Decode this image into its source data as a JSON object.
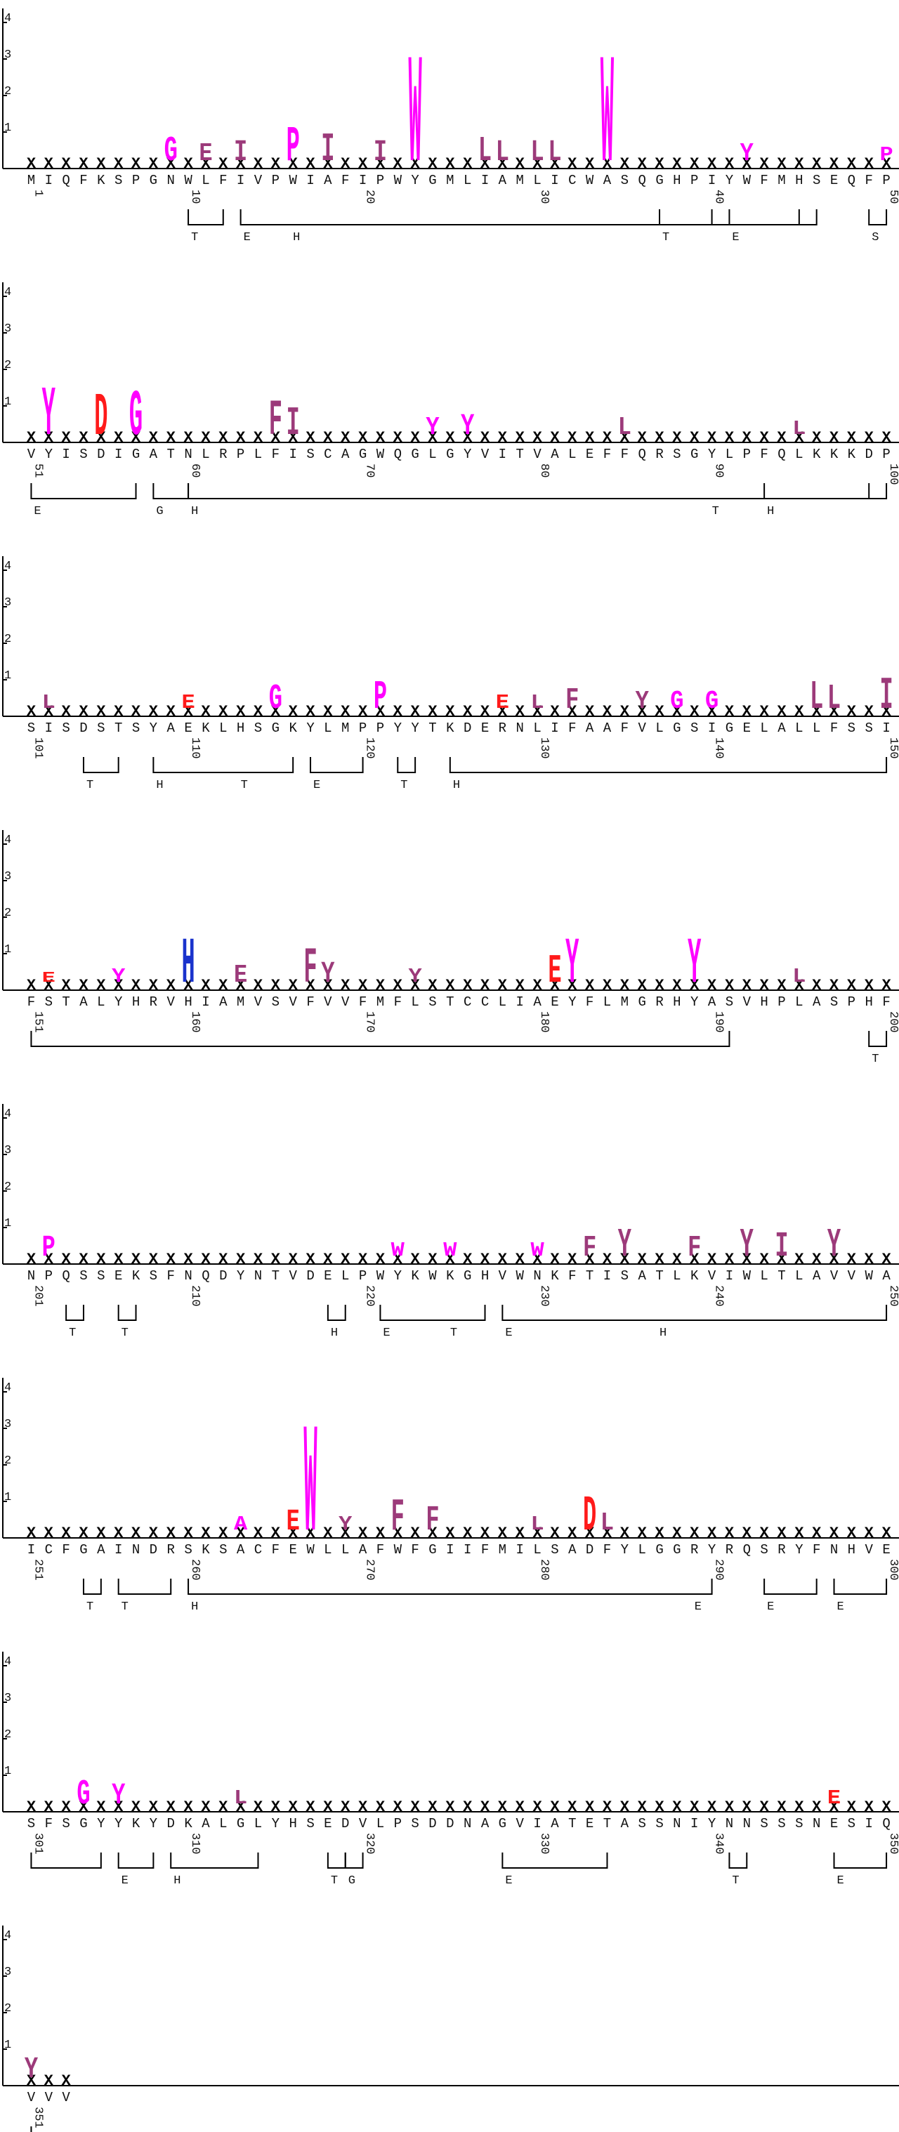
{
  "y_ticks": [
    "4",
    "3",
    "2",
    "1"
  ],
  "colors": {
    "hydrophobic": "#9c3a7a",
    "aromatic": "#ff00ff",
    "acidic": "#ff1a1a",
    "basic": "#1a33cc",
    "polar": "#22a022",
    "special": "#ff00ff",
    "x": "#000000"
  },
  "rows": [
    {
      "start": 1,
      "seq": "MIQFKSPGNWLFIVPWIAFIPWYGMLIAMLICWASQGHPIYWFMHSEQFP",
      "numbers": [
        "1",
        "10",
        "20",
        "30",
        "40",
        "50"
      ]
    },
    {
      "start": 51,
      "seq": "VYISDIGATNLRPLFISCAGWQGLGYVITVALEFFQRSGYLPFQLKKKDP",
      "numbers": [
        "51",
        "60",
        "70",
        "80",
        "90",
        "100"
      ]
    },
    {
      "start": 101,
      "seq": "SISDSTSYAEKLHSGKYLMPPYYTKDERNLIFAAFVLGSIGELALLFSSI",
      "numbers": [
        "101",
        "110",
        "120",
        "130",
        "140",
        "150"
      ]
    },
    {
      "start": 151,
      "seq": "FSTALYHRVHIAMVSVFVVFMFLSTCCLIAEYFLMGRHYASVHPLASPHF",
      "numbers": [
        "151",
        "160",
        "170",
        "180",
        "190",
        "200"
      ]
    },
    {
      "start": 201,
      "seq": "NPQSSEKSFNQDYNTVDELPWYKWKGHVWNKFTISATLKVIWLTLAVVWA",
      "numbers": [
        "201",
        "210",
        "220",
        "230",
        "240",
        "250"
      ]
    },
    {
      "start": 251,
      "seq": "ICFGAINDRSKSACFEWLLAFWFGIIFMILSADFYLGGRYRQSRYFNHVE",
      "numbers": [
        "251",
        "260",
        "270",
        "280",
        "290",
        "300"
      ]
    },
    {
      "start": 301,
      "seq": "SFSGYYKYDKALGLYHSEDVLPSDDNAGVIATETASSNIYNNSSSNESIQ",
      "numbers": [
        "301",
        "310",
        "320",
        "330",
        "340",
        "350"
      ]
    },
    {
      "start": 351,
      "seq": "VVV",
      "numbers": [
        "351"
      ]
    }
  ],
  "logo_letters": [
    {
      "row": 0,
      "pos": 8,
      "letter": "G",
      "bits": 0.7,
      "cls": "aromatic"
    },
    {
      "row": 0,
      "pos": 10,
      "letter": "E",
      "bits": 0.5,
      "cls": "hydrophobic"
    },
    {
      "row": 0,
      "pos": 12,
      "letter": "I",
      "bits": 0.6,
      "cls": "hydrophobic"
    },
    {
      "row": 0,
      "pos": 15,
      "letter": "P",
      "bits": 1.0,
      "cls": "aromatic"
    },
    {
      "row": 0,
      "pos": 17,
      "letter": "I",
      "bits": 0.8,
      "cls": "hydrophobic"
    },
    {
      "row": 0,
      "pos": 20,
      "letter": "I",
      "bits": 0.6,
      "cls": "hydrophobic"
    },
    {
      "row": 0,
      "pos": 22,
      "letter": "W",
      "bits": 3.1,
      "cls": "aromatic"
    },
    {
      "row": 0,
      "pos": 26,
      "letter": "L",
      "bits": 0.7,
      "cls": "hydrophobic"
    },
    {
      "row": 0,
      "pos": 27,
      "letter": "L",
      "bits": 0.6,
      "cls": "hydrophobic"
    },
    {
      "row": 0,
      "pos": 29,
      "letter": "L",
      "bits": 0.6,
      "cls": "hydrophobic"
    },
    {
      "row": 0,
      "pos": 30,
      "letter": "L",
      "bits": 0.6,
      "cls": "hydrophobic"
    },
    {
      "row": 0,
      "pos": 33,
      "letter": "W",
      "bits": 3.1,
      "cls": "aromatic"
    },
    {
      "row": 0,
      "pos": 41,
      "letter": "Y",
      "bits": 0.5,
      "cls": "aromatic"
    },
    {
      "row": 0,
      "pos": 49,
      "letter": "P",
      "bits": 0.4,
      "cls": "aromatic"
    },
    {
      "row": 1,
      "pos": 1,
      "letter": "Y",
      "bits": 1.4,
      "cls": "aromatic"
    },
    {
      "row": 1,
      "pos": 4,
      "letter": "D",
      "bits": 1.2,
      "cls": "acidic"
    },
    {
      "row": 1,
      "pos": 6,
      "letter": "G",
      "bits": 1.3,
      "cls": "aromatic"
    },
    {
      "row": 1,
      "pos": 14,
      "letter": "F",
      "bits": 1.0,
      "cls": "hydrophobic"
    },
    {
      "row": 1,
      "pos": 15,
      "letter": "I",
      "bits": 0.8,
      "cls": "hydrophobic"
    },
    {
      "row": 1,
      "pos": 23,
      "letter": "Y",
      "bits": 0.5,
      "cls": "aromatic"
    },
    {
      "row": 1,
      "pos": 25,
      "letter": "Y",
      "bits": 0.6,
      "cls": "aromatic"
    },
    {
      "row": 1,
      "pos": 34,
      "letter": "L",
      "bits": 0.5,
      "cls": "hydrophobic"
    },
    {
      "row": 1,
      "pos": 44,
      "letter": "L",
      "bits": 0.4,
      "cls": "hydrophobic"
    },
    {
      "row": 2,
      "pos": 1,
      "letter": "L",
      "bits": 0.4,
      "cls": "hydrophobic"
    },
    {
      "row": 2,
      "pos": 9,
      "letter": "E",
      "bits": 0.4,
      "cls": "acidic"
    },
    {
      "row": 2,
      "pos": 14,
      "letter": "G",
      "bits": 0.7,
      "cls": "aromatic"
    },
    {
      "row": 2,
      "pos": 20,
      "letter": "P",
      "bits": 0.8,
      "cls": "aromatic"
    },
    {
      "row": 2,
      "pos": 27,
      "letter": "E",
      "bits": 0.4,
      "cls": "acidic"
    },
    {
      "row": 2,
      "pos": 29,
      "letter": "L",
      "bits": 0.4,
      "cls": "hydrophobic"
    },
    {
      "row": 2,
      "pos": 31,
      "letter": "F",
      "bits": 0.6,
      "cls": "hydrophobic"
    },
    {
      "row": 2,
      "pos": 35,
      "letter": "Y",
      "bits": 0.5,
      "cls": "hydrophobic"
    },
    {
      "row": 2,
      "pos": 37,
      "letter": "G",
      "bits": 0.5,
      "cls": "aromatic"
    },
    {
      "row": 2,
      "pos": 39,
      "letter": "G",
      "bits": 0.5,
      "cls": "aromatic"
    },
    {
      "row": 2,
      "pos": 45,
      "letter": "L",
      "bits": 0.8,
      "cls": "hydrophobic"
    },
    {
      "row": 2,
      "pos": 46,
      "letter": "L",
      "bits": 0.7,
      "cls": "hydrophobic"
    },
    {
      "row": 2,
      "pos": 49,
      "letter": "I",
      "bits": 0.9,
      "cls": "hydrophobic"
    },
    {
      "row": 3,
      "pos": 1,
      "letter": "E",
      "bits": 0.3,
      "cls": "acidic"
    },
    {
      "row": 3,
      "pos": 5,
      "letter": "Y",
      "bits": 0.4,
      "cls": "aromatic"
    },
    {
      "row": 3,
      "pos": 9,
      "letter": "H",
      "bits": 1.3,
      "cls": "basic"
    },
    {
      "row": 3,
      "pos": 12,
      "letter": "E",
      "bits": 0.5,
      "cls": "hydrophobic"
    },
    {
      "row": 3,
      "pos": 16,
      "letter": "F",
      "bits": 1.0,
      "cls": "hydrophobic"
    },
    {
      "row": 3,
      "pos": 17,
      "letter": "Y",
      "bits": 0.6,
      "cls": "hydrophobic"
    },
    {
      "row": 3,
      "pos": 22,
      "letter": "Y",
      "bits": 0.4,
      "cls": "hydrophobic"
    },
    {
      "row": 3,
      "pos": 30,
      "letter": "E",
      "bits": 0.8,
      "cls": "acidic"
    },
    {
      "row": 3,
      "pos": 31,
      "letter": "Y",
      "bits": 1.3,
      "cls": "aromatic"
    },
    {
      "row": 3,
      "pos": 38,
      "letter": "Y",
      "bits": 1.3,
      "cls": "aromatic"
    },
    {
      "row": 3,
      "pos": 44,
      "letter": "L",
      "bits": 0.4,
      "cls": "hydrophobic"
    },
    {
      "row": 4,
      "pos": 1,
      "letter": "P",
      "bits": 0.6,
      "cls": "aromatic"
    },
    {
      "row": 4,
      "pos": 21,
      "letter": "W",
      "bits": 0.4,
      "cls": "aromatic"
    },
    {
      "row": 4,
      "pos": 24,
      "letter": "W",
      "bits": 0.4,
      "cls": "aromatic"
    },
    {
      "row": 4,
      "pos": 29,
      "letter": "W",
      "bits": 0.4,
      "cls": "aromatic"
    },
    {
      "row": 4,
      "pos": 32,
      "letter": "F",
      "bits": 0.6,
      "cls": "hydrophobic"
    },
    {
      "row": 4,
      "pos": 34,
      "letter": "Y",
      "bits": 0.8,
      "cls": "hydrophobic"
    },
    {
      "row": 4,
      "pos": 38,
      "letter": "F",
      "bits": 0.6,
      "cls": "hydrophobic"
    },
    {
      "row": 4,
      "pos": 41,
      "letter": "Y",
      "bits": 0.8,
      "cls": "hydrophobic"
    },
    {
      "row": 4,
      "pos": 43,
      "letter": "I",
      "bits": 0.7,
      "cls": "hydrophobic"
    },
    {
      "row": 4,
      "pos": 46,
      "letter": "Y",
      "bits": 0.8,
      "cls": "hydrophobic"
    },
    {
      "row": 5,
      "pos": 12,
      "letter": "A",
      "bits": 0.4,
      "cls": "aromatic"
    },
    {
      "row": 5,
      "pos": 15,
      "letter": "E",
      "bits": 0.6,
      "cls": "acidic"
    },
    {
      "row": 5,
      "pos": 16,
      "letter": "W",
      "bits": 3.1,
      "cls": "aromatic"
    },
    {
      "row": 5,
      "pos": 18,
      "letter": "Y",
      "bits": 0.4,
      "cls": "hydrophobic"
    },
    {
      "row": 5,
      "pos": 21,
      "letter": "F",
      "bits": 0.9,
      "cls": "hydrophobic"
    },
    {
      "row": 5,
      "pos": 23,
      "letter": "F",
      "bits": 0.7,
      "cls": "hydrophobic"
    },
    {
      "row": 5,
      "pos": 29,
      "letter": "L",
      "bits": 0.4,
      "cls": "hydrophobic"
    },
    {
      "row": 5,
      "pos": 32,
      "letter": "D",
      "bits": 1.0,
      "cls": "acidic"
    },
    {
      "row": 5,
      "pos": 33,
      "letter": "L",
      "bits": 0.5,
      "cls": "hydrophobic"
    },
    {
      "row": 6,
      "pos": 3,
      "letter": "G",
      "bits": 0.7,
      "cls": "aromatic"
    },
    {
      "row": 6,
      "pos": 5,
      "letter": "Y",
      "bits": 0.6,
      "cls": "aromatic"
    },
    {
      "row": 6,
      "pos": 12,
      "letter": "L",
      "bits": 0.4,
      "cls": "hydrophobic"
    },
    {
      "row": 6,
      "pos": 46,
      "letter": "E",
      "bits": 0.4,
      "cls": "acidic"
    },
    {
      "row": 7,
      "pos": 0,
      "letter": "Y",
      "bits": 0.6,
      "cls": "hydrophobic"
    }
  ],
  "ss_segments": [
    {
      "row": 0,
      "a": 9,
      "b": 11,
      "label": "T"
    },
    {
      "row": 0,
      "a": 12,
      "b": 44,
      "label": "E",
      "label2": "H",
      "l2pos": 15
    },
    {
      "row": 0,
      "a": 36,
      "b": 39,
      "label": "T"
    },
    {
      "row": 0,
      "a": 40,
      "b": 45,
      "label": "E"
    },
    {
      "row": 0,
      "a": 48,
      "b": 49,
      "label": "S"
    },
    {
      "row": 1,
      "a": 0,
      "b": 6,
      "label": "E"
    },
    {
      "row": 1,
      "a": 7,
      "b": 9,
      "label": "G"
    },
    {
      "row": 1,
      "a": 9,
      "b": 49,
      "label": "H",
      "label2": "T",
      "l2pos": 39
    },
    {
      "row": 1,
      "a": 42,
      "b": 48,
      "label": "H"
    },
    {
      "row": 2,
      "a": 3,
      "b": 5,
      "label": "T"
    },
    {
      "row": 2,
      "a": 7,
      "b": 15,
      "label": "H",
      "label2": "T",
      "l2pos": 12
    },
    {
      "row": 2,
      "a": 16,
      "b": 19,
      "label": "E"
    },
    {
      "row": 2,
      "a": 21,
      "b": 22,
      "label": "T"
    },
    {
      "row": 2,
      "a": 24,
      "b": 49,
      "label": "H"
    },
    {
      "row": 3,
      "a": 0,
      "b": 40,
      "label": ""
    },
    {
      "row": 3,
      "a": 48,
      "b": 49,
      "label": "T"
    },
    {
      "row": 4,
      "a": 2,
      "b": 3,
      "label": "T"
    },
    {
      "row": 4,
      "a": 5,
      "b": 6,
      "label": "T"
    },
    {
      "row": 4,
      "a": 17,
      "b": 18,
      "label": "H"
    },
    {
      "row": 4,
      "a": 20,
      "b": 26,
      "label": "E",
      "label2": "T",
      "l2pos": 24
    },
    {
      "row": 4,
      "a": 27,
      "b": 49,
      "label": "E",
      "label2": "H",
      "l2pos": 36
    },
    {
      "row": 5,
      "a": 3,
      "b": 4,
      "label": "T"
    },
    {
      "row": 5,
      "a": 5,
      "b": 8,
      "label": "T"
    },
    {
      "row": 5,
      "a": 9,
      "b": 39,
      "label": "H",
      "label2": "E",
      "l2pos": 38
    },
    {
      "row": 5,
      "a": 42,
      "b": 45,
      "label": "E"
    },
    {
      "row": 5,
      "a": 46,
      "b": 49,
      "label": "E"
    },
    {
      "row": 6,
      "a": 0,
      "b": 4,
      "label": ""
    },
    {
      "row": 6,
      "a": 5,
      "b": 7,
      "label": "E"
    },
    {
      "row": 6,
      "a": 8,
      "b": 13,
      "label": "H"
    },
    {
      "row": 6,
      "a": 17,
      "b": 18,
      "label": "T"
    },
    {
      "row": 6,
      "a": 18,
      "b": 19,
      "label": "G"
    },
    {
      "row": 6,
      "a": 27,
      "b": 33,
      "label": "E"
    },
    {
      "row": 6,
      "a": 40,
      "b": 41,
      "label": "T"
    },
    {
      "row": 6,
      "a": 46,
      "b": 49,
      "label": "E"
    },
    {
      "row": 7,
      "a": 0,
      "b": 0,
      "label": ""
    }
  ]
}
